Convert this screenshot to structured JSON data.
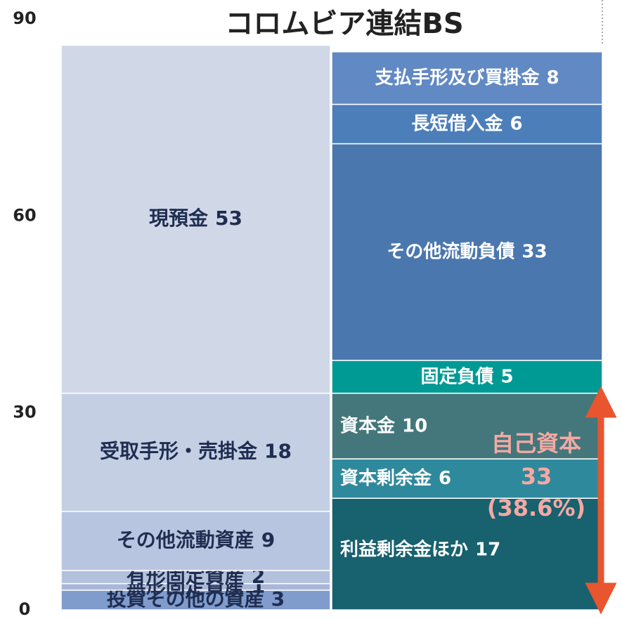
{
  "chart_data": {
    "type": "stacked_bar",
    "title": "コロムビア連結BS",
    "categories": [
      null,
      null
    ],
    "ylim": [
      0,
      90
    ],
    "yticks": [
      0,
      30,
      60,
      90
    ],
    "series": [
      {
        "name": "投資その他の資産",
        "color": "#7f9ccc",
        "values": [
          3,
          null
        ]
      },
      {
        "name": "無形固定資産",
        "color": "#a9b8d8",
        "values": [
          1,
          null
        ]
      },
      {
        "name": "有形固定資産",
        "color": "#b3c1dd",
        "values": [
          2,
          null
        ]
      },
      {
        "name": "その他流動資産",
        "color": "#b8c5e0",
        "values": [
          9,
          null
        ]
      },
      {
        "name": "受取手形・売掛金",
        "color": "#c5cfe4",
        "values": [
          18,
          null
        ]
      },
      {
        "name": "現預金",
        "color": "#d0d8e8",
        "values": [
          53,
          null
        ]
      },
      {
        "name": "利益剰余金ほか",
        "color": "#18616f",
        "values": [
          null,
          17
        ]
      },
      {
        "name": "資本剰余金",
        "color": "#2f899d",
        "values": [
          null,
          6
        ]
      },
      {
        "name": "資本金",
        "color": "#43777c",
        "values": [
          null,
          10
        ]
      },
      {
        "name": "固定負債",
        "color": "#009a94",
        "values": [
          null,
          5
        ]
      },
      {
        "name": "その他流動負債",
        "color": "#4a77ae",
        "values": [
          null,
          33
        ]
      },
      {
        "name": "長短借入金",
        "color": "#4c7eba",
        "values": [
          null,
          6
        ]
      },
      {
        "name": "支払手形及び買掛金",
        "color": "#6189c4",
        "values": [
          null,
          8
        ]
      }
    ],
    "annotation": [
      "自己資本",
      "33",
      "(38.6%)"
    ]
  }
}
